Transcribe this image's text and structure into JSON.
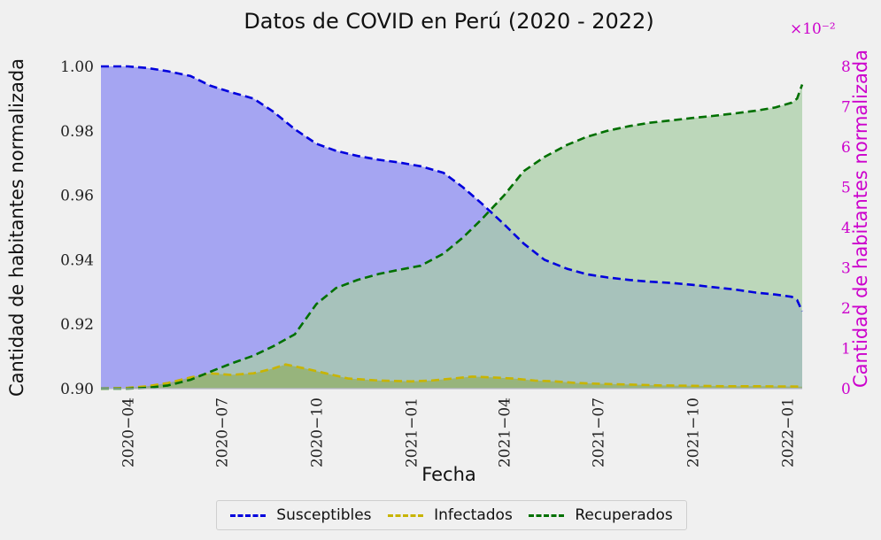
{
  "chart_data": {
    "type": "area",
    "title": "Datos de COVID en Perú (2020 - 2022)",
    "xlabel": "Fecha",
    "ylabel_left": "Cantidad de habitantes normalizada",
    "ylabel_right": "Cantidad de habitantes normalizada",
    "right_axis_multiplier": "×10⁻²",
    "x_range": [
      "2020-03-06",
      "2022-01-15"
    ],
    "x_ticks": [
      "2020-04",
      "2020-07",
      "2020-10",
      "2021-01",
      "2021-04",
      "2021-07",
      "2021-10",
      "2022-01"
    ],
    "ylim_left": [
      0.9,
      1.0
    ],
    "y_ticks_left": [
      "0.90",
      "0.92",
      "0.94",
      "0.96",
      "0.98",
      "1.00"
    ],
    "ylim_right": [
      0,
      8
    ],
    "y_ticks_right": [
      "0",
      "1",
      "2",
      "3",
      "4",
      "5",
      "6",
      "7",
      "8"
    ],
    "grid": false,
    "legend_position": "bottom-center",
    "series": [
      {
        "name": "Susceptibles",
        "axis": "left",
        "color": "#0000dd",
        "fill": "#a5a5f2",
        "x": [
          "2020-03-06",
          "2020-04-01",
          "2020-04-20",
          "2020-05-10",
          "2020-06-01",
          "2020-06-20",
          "2020-07-10",
          "2020-08-01",
          "2020-08-20",
          "2020-09-10",
          "2020-10-01",
          "2020-10-20",
          "2020-11-10",
          "2020-12-01",
          "2020-12-20",
          "2021-01-10",
          "2021-02-01",
          "2021-02-20",
          "2021-03-10",
          "2021-04-01",
          "2021-04-20",
          "2021-05-10",
          "2021-06-01",
          "2021-06-20",
          "2021-07-10",
          "2021-08-01",
          "2021-08-20",
          "2021-09-10",
          "2021-10-01",
          "2021-10-20",
          "2021-11-10",
          "2021-12-01",
          "2021-12-20",
          "2022-01-05",
          "2022-01-10",
          "2022-01-15"
        ],
        "values": [
          1.0,
          1.0,
          0.9995,
          0.9985,
          0.997,
          0.994,
          0.992,
          0.99,
          0.986,
          0.9805,
          0.976,
          0.9738,
          0.9722,
          0.971,
          0.9702,
          0.969,
          0.967,
          0.9625,
          0.9575,
          0.951,
          0.945,
          0.94,
          0.9372,
          0.9355,
          0.9345,
          0.9337,
          0.9332,
          0.9328,
          0.9322,
          0.9315,
          0.9308,
          0.9298,
          0.9292,
          0.9285,
          0.9275,
          0.924
        ]
      },
      {
        "name": "Infectados",
        "axis": "right",
        "color": "#c8b400",
        "fill": "#8aaa48",
        "x": [
          "2020-03-06",
          "2020-04-01",
          "2020-04-20",
          "2020-05-10",
          "2020-06-01",
          "2020-06-20",
          "2020-07-10",
          "2020-08-01",
          "2020-08-20",
          "2020-09-01",
          "2020-09-20",
          "2020-10-10",
          "2020-11-01",
          "2020-12-01",
          "2021-01-01",
          "2021-01-20",
          "2021-02-10",
          "2021-03-01",
          "2021-03-20",
          "2021-04-10",
          "2021-05-01",
          "2021-05-20",
          "2021-06-10",
          "2021-07-01",
          "2021-08-01",
          "2021-09-01",
          "2021-10-01",
          "2021-11-01",
          "2021-12-01",
          "2022-01-15"
        ],
        "values": [
          0,
          0.02,
          0.06,
          0.14,
          0.28,
          0.38,
          0.34,
          0.38,
          0.5,
          0.6,
          0.5,
          0.38,
          0.25,
          0.2,
          0.18,
          0.2,
          0.25,
          0.3,
          0.28,
          0.25,
          0.2,
          0.18,
          0.14,
          0.12,
          0.1,
          0.08,
          0.07,
          0.06,
          0.06,
          0.05
        ]
      },
      {
        "name": "Recuperados",
        "axis": "right",
        "color": "#007000",
        "fill": "#a8cda5",
        "x": [
          "2020-03-06",
          "2020-04-01",
          "2020-04-20",
          "2020-05-10",
          "2020-06-01",
          "2020-06-20",
          "2020-07-10",
          "2020-08-01",
          "2020-08-20",
          "2020-09-10",
          "2020-10-01",
          "2020-10-20",
          "2020-11-10",
          "2020-12-01",
          "2020-12-20",
          "2021-01-10",
          "2021-02-01",
          "2021-02-20",
          "2021-03-10",
          "2021-04-01",
          "2021-04-20",
          "2021-05-10",
          "2021-06-01",
          "2021-06-20",
          "2021-07-10",
          "2021-08-01",
          "2021-08-20",
          "2021-09-10",
          "2021-10-01",
          "2021-10-20",
          "2021-11-10",
          "2021-12-01",
          "2021-12-20",
          "2022-01-05",
          "2022-01-10",
          "2022-01-15"
        ],
        "values": [
          0,
          0,
          0.02,
          0.08,
          0.22,
          0.42,
          0.62,
          0.82,
          1.05,
          1.35,
          2.1,
          2.5,
          2.7,
          2.85,
          2.95,
          3.05,
          3.35,
          3.75,
          4.2,
          4.8,
          5.4,
          5.75,
          6.05,
          6.25,
          6.4,
          6.52,
          6.6,
          6.66,
          6.72,
          6.77,
          6.83,
          6.9,
          6.98,
          7.1,
          7.2,
          7.55
        ]
      }
    ]
  }
}
